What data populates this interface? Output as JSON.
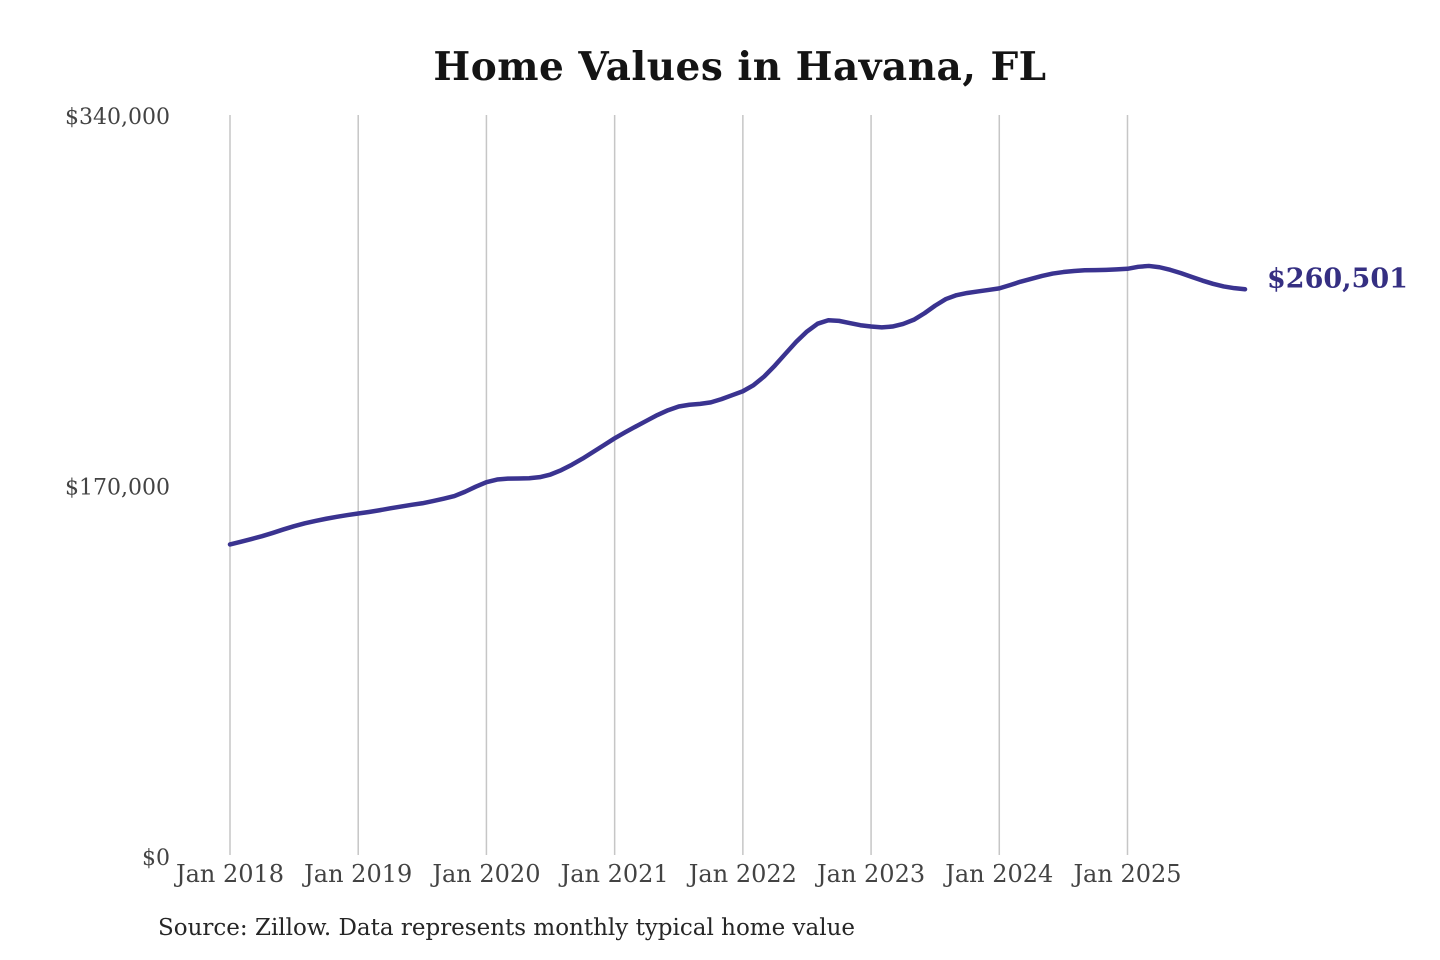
{
  "header": {
    "title": "Home Values in Havana, FL"
  },
  "footer": {
    "source_note": "Source: Zillow. Data represents monthly typical home value"
  },
  "chart_data": {
    "type": "line",
    "title": "Home Values in Havana, FL",
    "series_name": "Monthly typical home value",
    "x": [
      "2018-01",
      "2018-02",
      "2018-03",
      "2018-04",
      "2018-05",
      "2018-06",
      "2018-07",
      "2018-08",
      "2018-09",
      "2018-10",
      "2018-11",
      "2018-12",
      "2019-01",
      "2019-02",
      "2019-03",
      "2019-04",
      "2019-05",
      "2019-06",
      "2019-07",
      "2019-08",
      "2019-09",
      "2019-10",
      "2019-11",
      "2019-12",
      "2020-01",
      "2020-02",
      "2020-03",
      "2020-04",
      "2020-05",
      "2020-06",
      "2020-07",
      "2020-08",
      "2020-09",
      "2020-10",
      "2020-11",
      "2020-12",
      "2021-01",
      "2021-02",
      "2021-03",
      "2021-04",
      "2021-05",
      "2021-06",
      "2021-07",
      "2021-08",
      "2021-09",
      "2021-10",
      "2021-11",
      "2021-12",
      "2022-01",
      "2022-02",
      "2022-03",
      "2022-04",
      "2022-05",
      "2022-06",
      "2022-07",
      "2022-08",
      "2022-09",
      "2022-10",
      "2022-11",
      "2022-12",
      "2023-01",
      "2023-02",
      "2023-03",
      "2023-04",
      "2023-05",
      "2023-06",
      "2023-07",
      "2023-08",
      "2023-09",
      "2023-10",
      "2023-11",
      "2023-12",
      "2024-01",
      "2024-02",
      "2024-03",
      "2024-04",
      "2024-05",
      "2024-06",
      "2024-07",
      "2024-08",
      "2024-09",
      "2024-10",
      "2024-11",
      "2024-12",
      "2025-01",
      "2025-02",
      "2025-03",
      "2025-04",
      "2025-05",
      "2025-06",
      "2025-07",
      "2025-08",
      "2025-09",
      "2025-10",
      "2025-11",
      "2025-12"
    ],
    "values": [
      143400,
      144600,
      145900,
      147200,
      148700,
      150300,
      151800,
      153100,
      154200,
      155200,
      156100,
      156900,
      157600,
      158300,
      159100,
      160000,
      160800,
      161600,
      162300,
      163300,
      164400,
      165600,
      167600,
      169900,
      172000,
      173200,
      173600,
      173700,
      173800,
      174300,
      175500,
      177500,
      180000,
      182800,
      185900,
      189000,
      192100,
      194900,
      197600,
      200200,
      202800,
      205000,
      206700,
      207500,
      207900,
      208600,
      210100,
      211900,
      213700,
      216500,
      220500,
      225500,
      231000,
      236400,
      241100,
      244700,
      246300,
      246000,
      245000,
      244000,
      243400,
      243000,
      243400,
      244600,
      246500,
      249500,
      253000,
      256000,
      257800,
      258800,
      259500,
      260200,
      260900,
      262400,
      264000,
      265300,
      266600,
      267700,
      268400,
      268900,
      269200,
      269300,
      269400,
      269600,
      269900,
      270800,
      271200,
      270600,
      269400,
      267900,
      266200,
      264500,
      263000,
      261800,
      261000,
      260501
    ],
    "x_tick_labels": [
      "Jan 2018",
      "Jan 2019",
      "Jan 2020",
      "Jan 2021",
      "Jan 2022",
      "Jan 2023",
      "Jan 2024",
      "Jan 2025"
    ],
    "y_ticks": [
      {
        "label": "$0",
        "value": 0
      },
      {
        "label": "$170,000",
        "value": 170000
      },
      {
        "label": "$340,000",
        "value": 340000
      }
    ],
    "ylim": [
      0,
      340000
    ],
    "grid": "vertical-only",
    "legend": "none",
    "end_label": "$260,501",
    "last_value": 260501,
    "colors": {
      "line": "#3a3390",
      "end_label": "#352f82",
      "grid": "#c6c6c6",
      "tick_text": "#434343",
      "title_text": "#141414",
      "source_text": "#262626",
      "background": "#ffffff"
    }
  }
}
